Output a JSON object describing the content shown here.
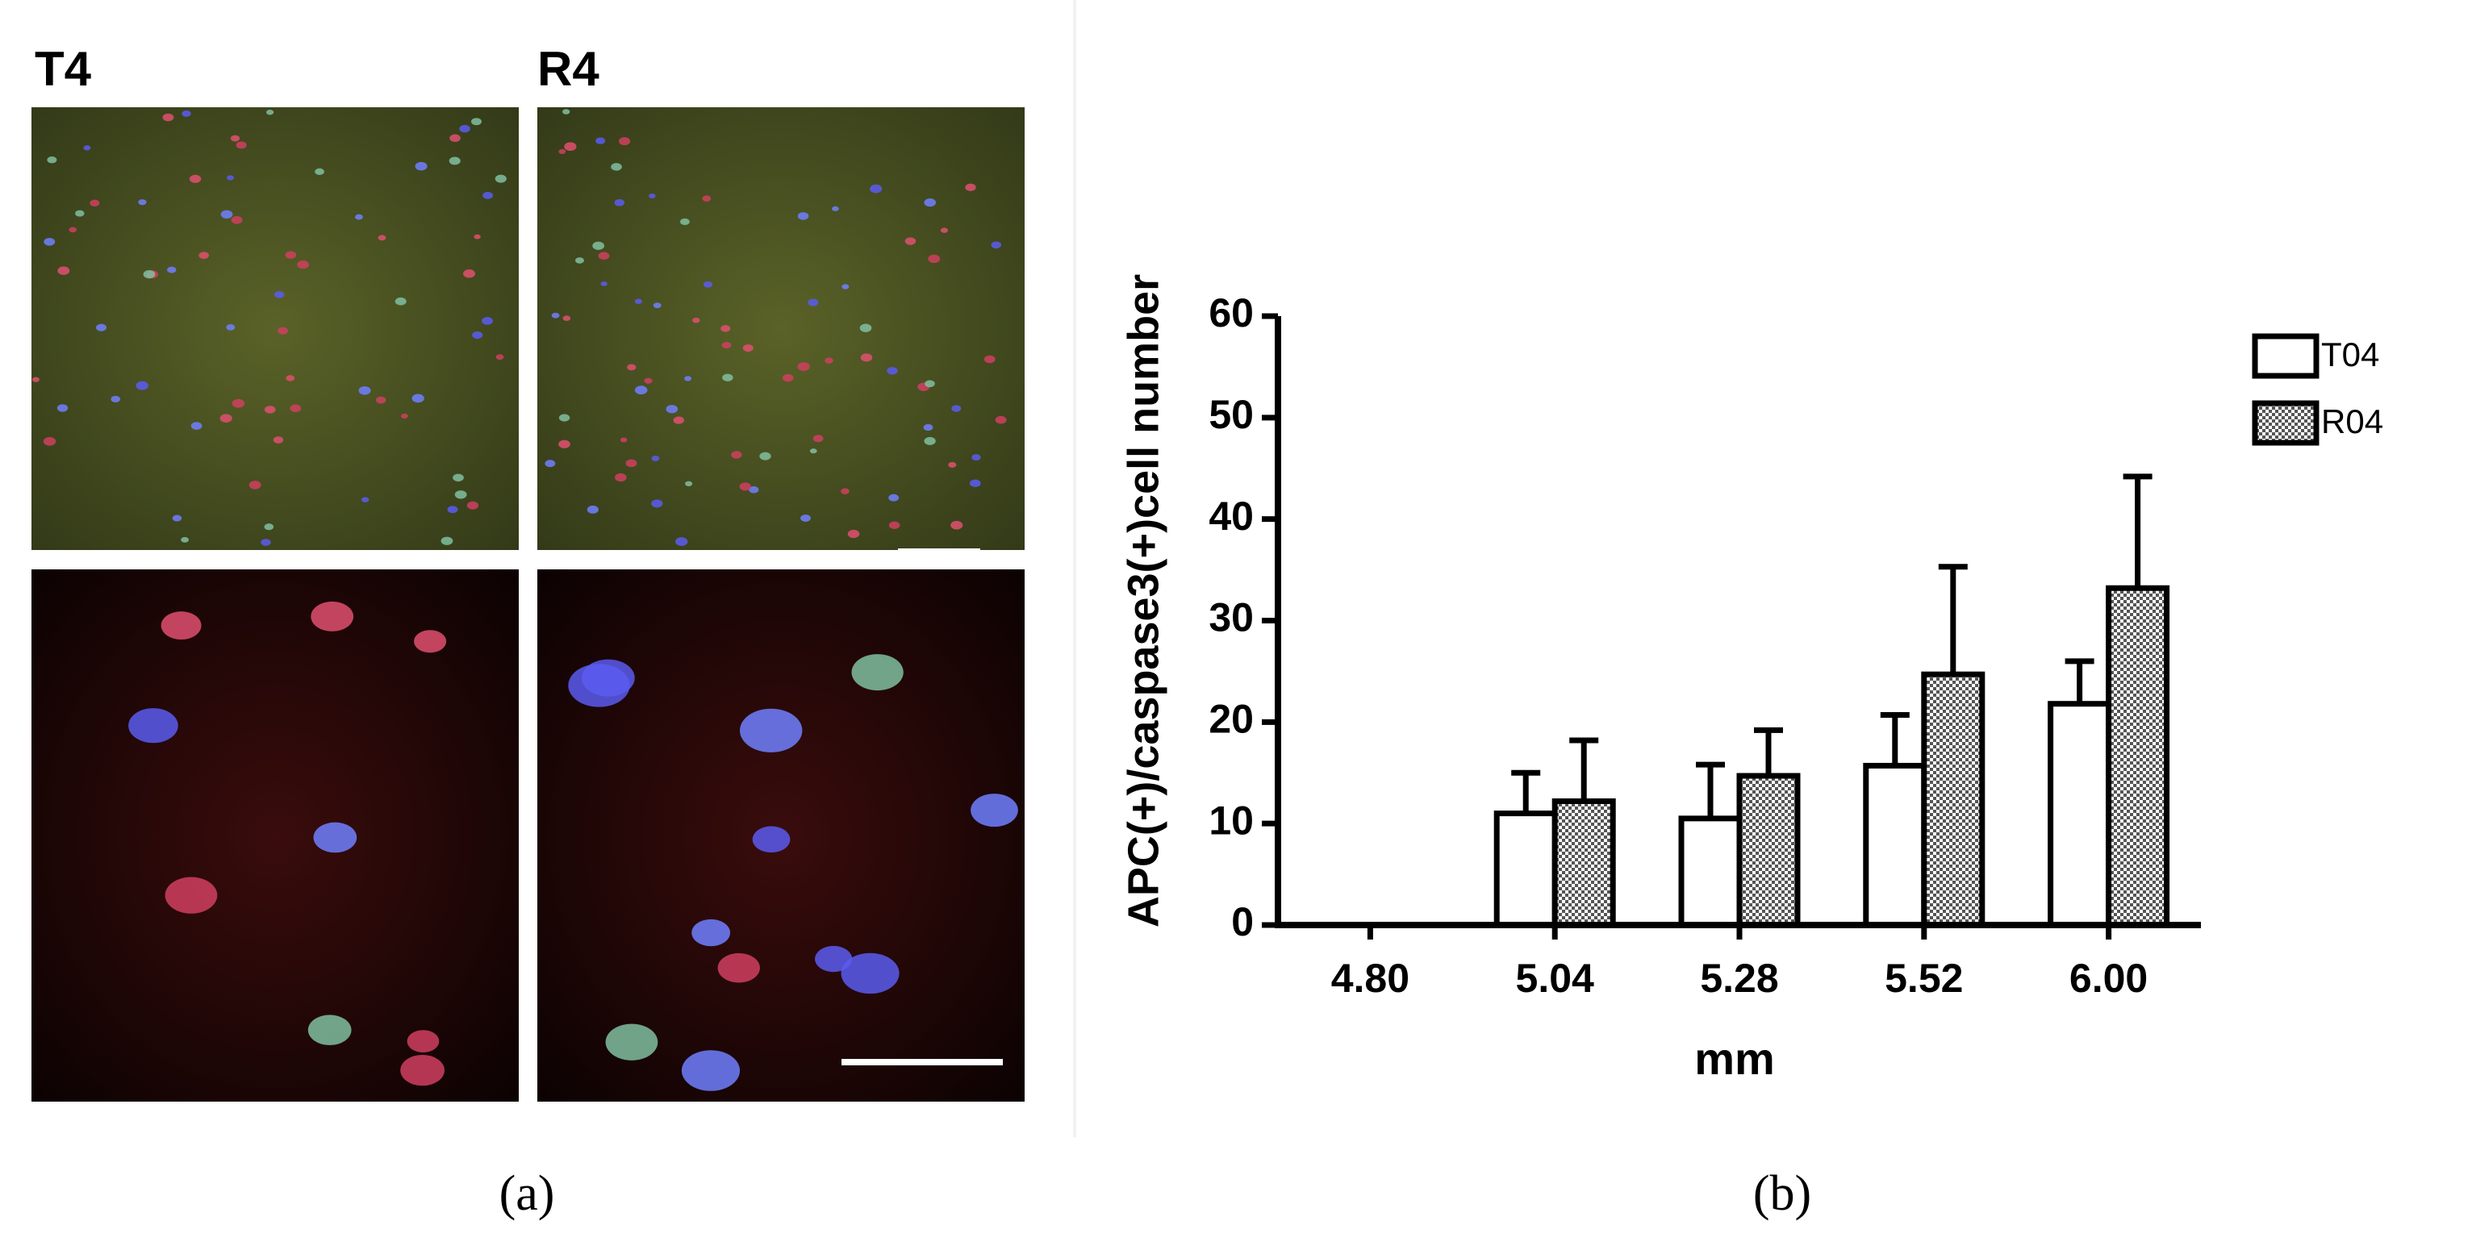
{
  "panel_a": {
    "label": "(a)",
    "columns": [
      "T4",
      "R4"
    ]
  },
  "panel_b": {
    "label": "(b)"
  },
  "chart_data": {
    "type": "bar",
    "y_label": "APC(+)/caspase3(+)cell number",
    "x_label": "mm",
    "categories": [
      "4.80",
      "5.04",
      "5.28",
      "5.52",
      "6.00"
    ],
    "series": [
      {
        "name": "T04",
        "color": "#ffffff",
        "values": [
          0,
          11,
          10.5,
          15.7,
          21.8
        ],
        "errors": [
          0,
          4,
          5.3,
          5,
          4.2
        ]
      },
      {
        "name": "R04",
        "color": "#555555",
        "pattern": "checker",
        "values": [
          0,
          12.2,
          14.7,
          24.7,
          33.2
        ],
        "errors": [
          0,
          6,
          4.5,
          10.6,
          11
        ]
      }
    ],
    "ylim": [
      0,
      60
    ],
    "yticks": [
      0,
      10,
      20,
      30,
      40,
      50,
      60
    ],
    "grid": false,
    "legend": "right"
  }
}
